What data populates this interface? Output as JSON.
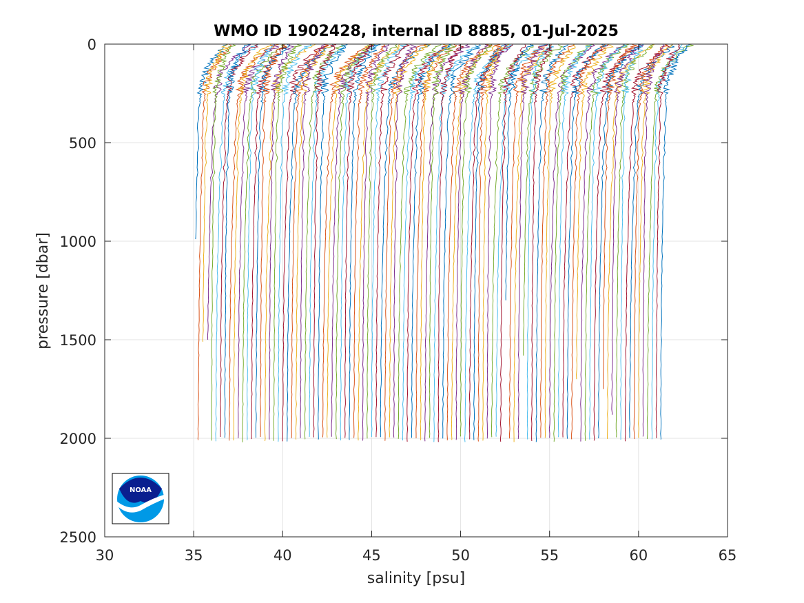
{
  "chart_data": {
    "type": "line",
    "title": "WMO ID 1902428, internal ID 8885, 01-Jul-2025",
    "xlabel": "salinity [psu]",
    "ylabel": "pressure [dbar]",
    "xlim": [
      30,
      65
    ],
    "ylim": [
      0,
      2500
    ],
    "y_reversed": true,
    "xticks": [
      30,
      35,
      40,
      45,
      50,
      55,
      60,
      65
    ],
    "yticks": [
      0,
      500,
      1000,
      1500,
      2000,
      2500
    ],
    "xtick_labels": [
      "30",
      "35",
      "40",
      "45",
      "50",
      "55",
      "60",
      "65"
    ],
    "ytick_labels": [
      "0",
      "500",
      "1000",
      "1500",
      "2000",
      "2500"
    ],
    "grid": true,
    "legend": "none",
    "logo": "NOAA",
    "series_description": "waterfall of salinity profiles, each successive profile offset by about 0.25 psu",
    "profile_count": 106,
    "first_profile_offset_psu": 35.0,
    "profile_step_psu": 0.25,
    "base_profile": {
      "pressure": [
        5,
        30,
        60,
        100,
        150,
        200,
        300,
        400,
        600,
        800,
        1000,
        1200,
        1500,
        1800,
        2000
      ],
      "salinity": [
        1.8,
        1.5,
        1.2,
        0.9,
        0.6,
        0.45,
        0.32,
        0.26,
        0.2,
        0.14,
        0.1,
        0.06,
        0.03,
        0.01,
        0.0
      ]
    },
    "short_profiles": [
      {
        "index": 0,
        "max_pressure": 990
      },
      {
        "index": 2,
        "max_pressure": 1510
      },
      {
        "index": 3,
        "max_pressure": 1500
      },
      {
        "index": 70,
        "max_pressure": 1300
      },
      {
        "index": 74,
        "max_pressure": 1580
      },
      {
        "index": 86,
        "max_pressure": 1700
      },
      {
        "index": 92,
        "max_pressure": 1750
      },
      {
        "index": 94,
        "max_pressure": 1880
      }
    ],
    "colors": [
      "#0072BD",
      "#D95319",
      "#EDB120",
      "#7E2F8E",
      "#77AC30",
      "#4DBEEE",
      "#A2142F"
    ]
  }
}
